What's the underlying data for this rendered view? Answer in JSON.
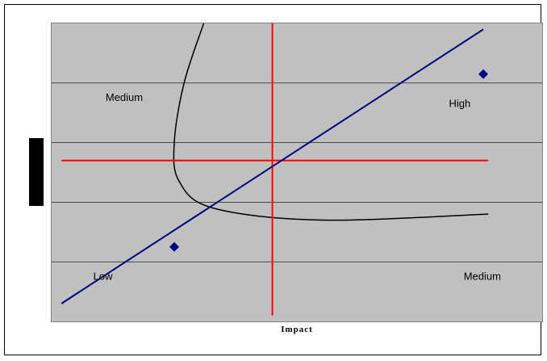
{
  "chart_data": {
    "type": "scatter",
    "title": "",
    "xlabel": "Impact",
    "ylabel": "",
    "xlim": [
      0,
      10
    ],
    "ylim": [
      0,
      10
    ],
    "grid": true,
    "plot_color": "#c0c0c0",
    "gridline_color": "#000000",
    "y_gridlines": [
      2,
      4,
      6,
      8
    ],
    "quadrant_labels": [
      {
        "text": "Medium",
        "x": 1.1,
        "y": 7.4
      },
      {
        "text": "High",
        "x": 8.1,
        "y": 7.2
      },
      {
        "text": "Low",
        "x": 0.85,
        "y": 1.4
      },
      {
        "text": "Medium",
        "x": 8.4,
        "y": 1.4
      }
    ],
    "points": {
      "color": "#000080",
      "marker": "diamond",
      "values": [
        {
          "x": 2.5,
          "y": 2.5
        },
        {
          "x": 8.8,
          "y": 8.3
        }
      ]
    },
    "diagonal_line": {
      "color": "#000080",
      "points": [
        [
          0.2,
          0.6
        ],
        [
          8.8,
          9.8
        ]
      ]
    },
    "crosshair": {
      "color": "#ff0000",
      "x": 4.5,
      "y": 5.4,
      "x_range": [
        0.2,
        8.9
      ],
      "y_range": [
        0.2,
        10
      ]
    },
    "curve": {
      "color": "#000000",
      "points": [
        [
          3.1,
          10
        ],
        [
          2.7,
          8
        ],
        [
          2.5,
          6
        ],
        [
          2.6,
          4.7
        ],
        [
          3.3,
          3.8
        ],
        [
          5.5,
          3.4
        ],
        [
          8.9,
          3.6
        ]
      ]
    }
  }
}
